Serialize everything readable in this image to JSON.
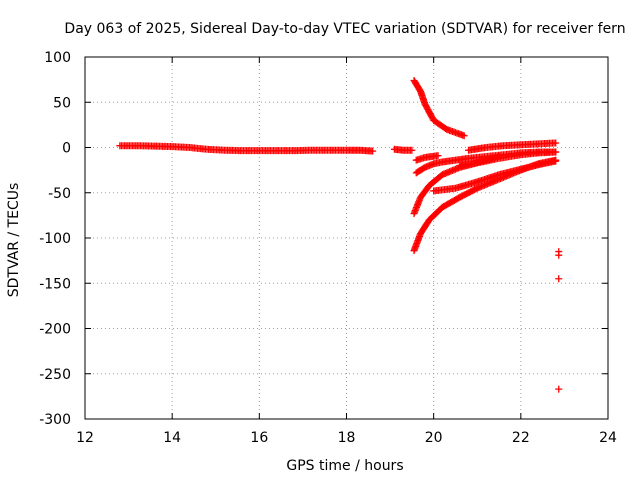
{
  "chart_data": {
    "type": "scatter",
    "title": "Day 063 of 2025, Sidereal Day-to-day VTEC variation (SDTVAR) for receiver fern",
    "xlabel": "GPS time / hours",
    "ylabel": "SDTVAR / TECUs",
    "xlim": [
      12,
      24
    ],
    "ylim": [
      -300,
      100
    ],
    "xticks": [
      12,
      14,
      16,
      18,
      20,
      22,
      24
    ],
    "yticks": [
      -300,
      -250,
      -200,
      -150,
      -100,
      -50,
      0,
      50,
      100
    ],
    "grid": true,
    "marker": "+",
    "color": "#ff0000",
    "series": [
      {
        "name": "s1",
        "x": [
          12.8,
          13.2,
          13.6,
          14.0,
          14.4,
          14.8,
          15.2,
          15.6,
          16.0,
          16.4,
          16.8,
          17.2,
          17.6,
          18.0,
          18.3,
          18.6
        ],
        "y": [
          2,
          2,
          1.5,
          1,
          0,
          -2,
          -3,
          -3.5,
          -3.5,
          -3.5,
          -3.5,
          -3,
          -3,
          -3,
          -3,
          -4
        ]
      },
      {
        "name": "s2",
        "x": [
          19.1,
          19.3,
          19.5
        ],
        "y": [
          -2,
          -3,
          -3
        ]
      },
      {
        "name": "s3",
        "x": [
          19.55,
          19.6,
          19.7,
          19.8,
          20.0,
          20.3,
          20.7
        ],
        "y": [
          74,
          70,
          62,
          48,
          30,
          20,
          13
        ]
      },
      {
        "name": "s4",
        "x": [
          19.6,
          19.8,
          20.0,
          20.2,
          20.5,
          20.8,
          21.2,
          21.6,
          22.0,
          22.4,
          22.8
        ],
        "y": [
          -28,
          -22,
          -18,
          -16,
          -14,
          -12,
          -10,
          -8,
          -6,
          -5,
          -5
        ]
      },
      {
        "name": "s5",
        "x": [
          19.6,
          19.8,
          20.1
        ],
        "y": [
          -14,
          -11,
          -9
        ]
      },
      {
        "name": "s6",
        "x": [
          19.55,
          19.7,
          19.9,
          20.2,
          20.6,
          21.0,
          21.5,
          22.0,
          22.4,
          22.8
        ],
        "y": [
          -73,
          -55,
          -42,
          -30,
          -22,
          -17,
          -12,
          -8,
          -6,
          -5
        ]
      },
      {
        "name": "s7",
        "x": [
          19.55,
          19.7,
          19.9,
          20.2,
          20.6,
          21.0,
          21.5,
          22.0,
          22.4,
          22.8
        ],
        "y": [
          -114,
          -95,
          -80,
          -66,
          -55,
          -45,
          -35,
          -25,
          -18,
          -14
        ]
      },
      {
        "name": "s8",
        "x": [
          20.0,
          20.5,
          21.0,
          21.5,
          22.0,
          22.4,
          22.8
        ],
        "y": [
          -48,
          -45,
          -38,
          -30,
          -24,
          -19,
          -15
        ]
      },
      {
        "name": "s9",
        "x": [
          20.8,
          21.2,
          21.6,
          22.0,
          22.4,
          22.8
        ],
        "y": [
          -3,
          0,
          2,
          3,
          4,
          5
        ]
      },
      {
        "name": "s10",
        "x": [
          20.6,
          20.9,
          21.2,
          21.5
        ],
        "y": [
          -20,
          -18,
          -14,
          -10
        ]
      },
      {
        "name": "s11",
        "x": [
          22.87,
          22.87,
          22.87,
          22.87
        ],
        "y": [
          -115,
          -119,
          -145,
          -267
        ]
      }
    ]
  }
}
